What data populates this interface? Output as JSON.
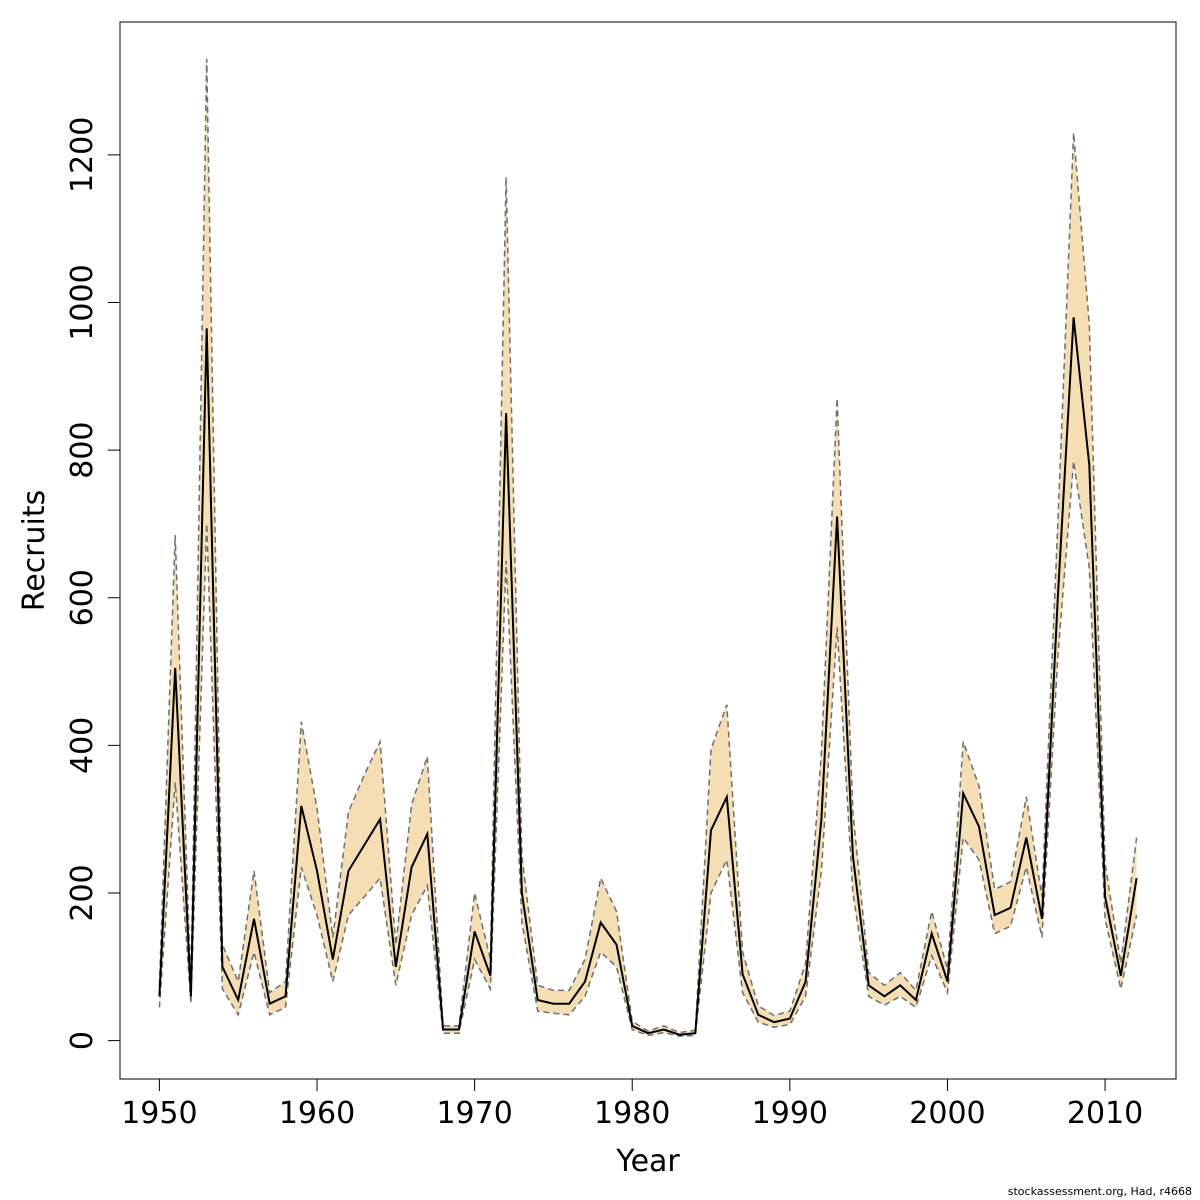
{
  "chart_data": {
    "type": "line",
    "xlabel": "Year",
    "ylabel": "Recruits",
    "xlim": [
      1947.5,
      2014.5
    ],
    "ylim": [
      -52,
      1380
    ],
    "x_ticks": [
      1950,
      1960,
      1970,
      1980,
      1990,
      2000,
      2010
    ],
    "y_ticks": [
      0,
      200,
      400,
      600,
      800,
      1000,
      1200
    ],
    "grid": false,
    "legend": "none",
    "colors": {
      "band": "#f5deb3",
      "line": "#000000",
      "bounds": "#6e6e6e"
    },
    "x": [
      1950,
      1951,
      1952,
      1953,
      1954,
      1955,
      1956,
      1957,
      1958,
      1959,
      1960,
      1961,
      1962,
      1963,
      1964,
      1965,
      1966,
      1967,
      1968,
      1969,
      1970,
      1971,
      1972,
      1973,
      1974,
      1975,
      1976,
      1977,
      1978,
      1979,
      1980,
      1981,
      1982,
      1983,
      1984,
      1985,
      1986,
      1987,
      1988,
      1989,
      1990,
      1991,
      1992,
      1993,
      1994,
      1995,
      1996,
      1997,
      1998,
      1999,
      2000,
      2001,
      2002,
      2003,
      2004,
      2005,
      2006,
      2007,
      2008,
      2009,
      2010,
      2011,
      2012
    ],
    "series": [
      {
        "role": "estimate",
        "values": [
          60,
          505,
          60,
          965,
          100,
          55,
          165,
          50,
          60,
          318,
          230,
          110,
          230,
          265,
          300,
          100,
          235,
          280,
          15,
          15,
          148,
          88,
          850,
          200,
          55,
          50,
          50,
          80,
          160,
          130,
          20,
          10,
          15,
          8,
          10,
          285,
          330,
          90,
          35,
          25,
          30,
          80,
          300,
          710,
          250,
          75,
          60,
          75,
          55,
          145,
          80,
          335,
          290,
          170,
          180,
          275,
          165,
          600,
          980,
          780,
          195,
          88,
          220
        ]
      },
      {
        "role": "lower",
        "values": [
          45,
          350,
          50,
          700,
          70,
          35,
          120,
          35,
          45,
          235,
          170,
          80,
          170,
          195,
          220,
          75,
          170,
          210,
          10,
          10,
          110,
          70,
          650,
          160,
          40,
          37,
          35,
          60,
          120,
          100,
          15,
          7,
          11,
          6,
          7,
          200,
          245,
          65,
          25,
          18,
          22,
          60,
          230,
          560,
          200,
          60,
          48,
          60,
          45,
          115,
          65,
          275,
          245,
          145,
          155,
          235,
          140,
          520,
          785,
          640,
          165,
          70,
          170
        ]
      },
      {
        "role": "upper",
        "values": [
          75,
          685,
          72,
          1330,
          130,
          80,
          230,
          65,
          80,
          432,
          315,
          140,
          310,
          360,
          405,
          130,
          320,
          385,
          20,
          20,
          200,
          110,
          1170,
          250,
          75,
          68,
          68,
          110,
          220,
          175,
          26,
          13,
          20,
          11,
          14,
          395,
          455,
          120,
          47,
          34,
          40,
          105,
          390,
          870,
          310,
          92,
          75,
          92,
          68,
          175,
          97,
          405,
          345,
          205,
          215,
          330,
          195,
          700,
          1230,
          970,
          240,
          105,
          275
        ]
      }
    ]
  },
  "footer": {
    "credit": "stockassessment.org, Had, r4668"
  }
}
